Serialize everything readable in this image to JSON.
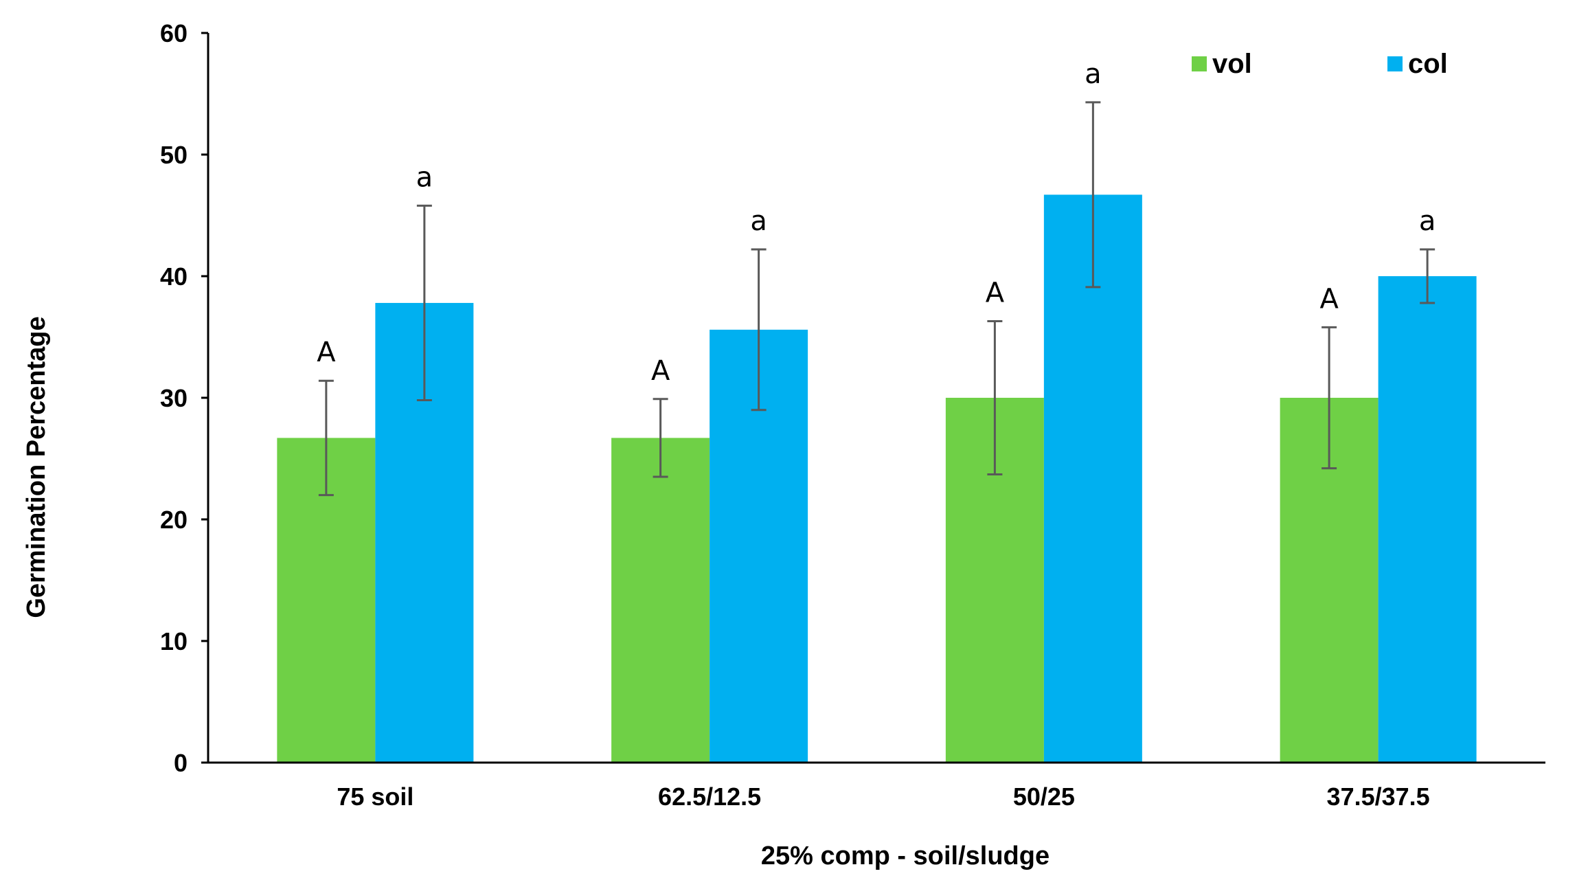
{
  "chart_data": {
    "type": "bar",
    "title": "",
    "xlabel": "25% comp - soil/sludge",
    "ylabel": "Germination Percentage",
    "ylim": [
      0,
      60
    ],
    "yticks": [
      0,
      10,
      20,
      30,
      40,
      50,
      60
    ],
    "categories": [
      "75 soil",
      "62.5/12.5",
      "50/25",
      "37.5/37.5"
    ],
    "series": [
      {
        "name": "vol",
        "color": "#6fd046",
        "values": [
          26.7,
          26.7,
          30.0,
          30.0
        ],
        "errors": [
          4.7,
          3.2,
          6.3,
          5.8
        ],
        "sig_labels": [
          "A",
          "A",
          "A",
          "A"
        ]
      },
      {
        "name": "col",
        "color": "#00b0f0",
        "values": [
          37.8,
          35.6,
          46.7,
          40.0
        ],
        "errors": [
          8.0,
          6.6,
          7.6,
          2.2
        ],
        "sig_labels": [
          "a",
          "a",
          "a",
          "a"
        ]
      }
    ],
    "legend_position": "top-right",
    "grid": false
  }
}
